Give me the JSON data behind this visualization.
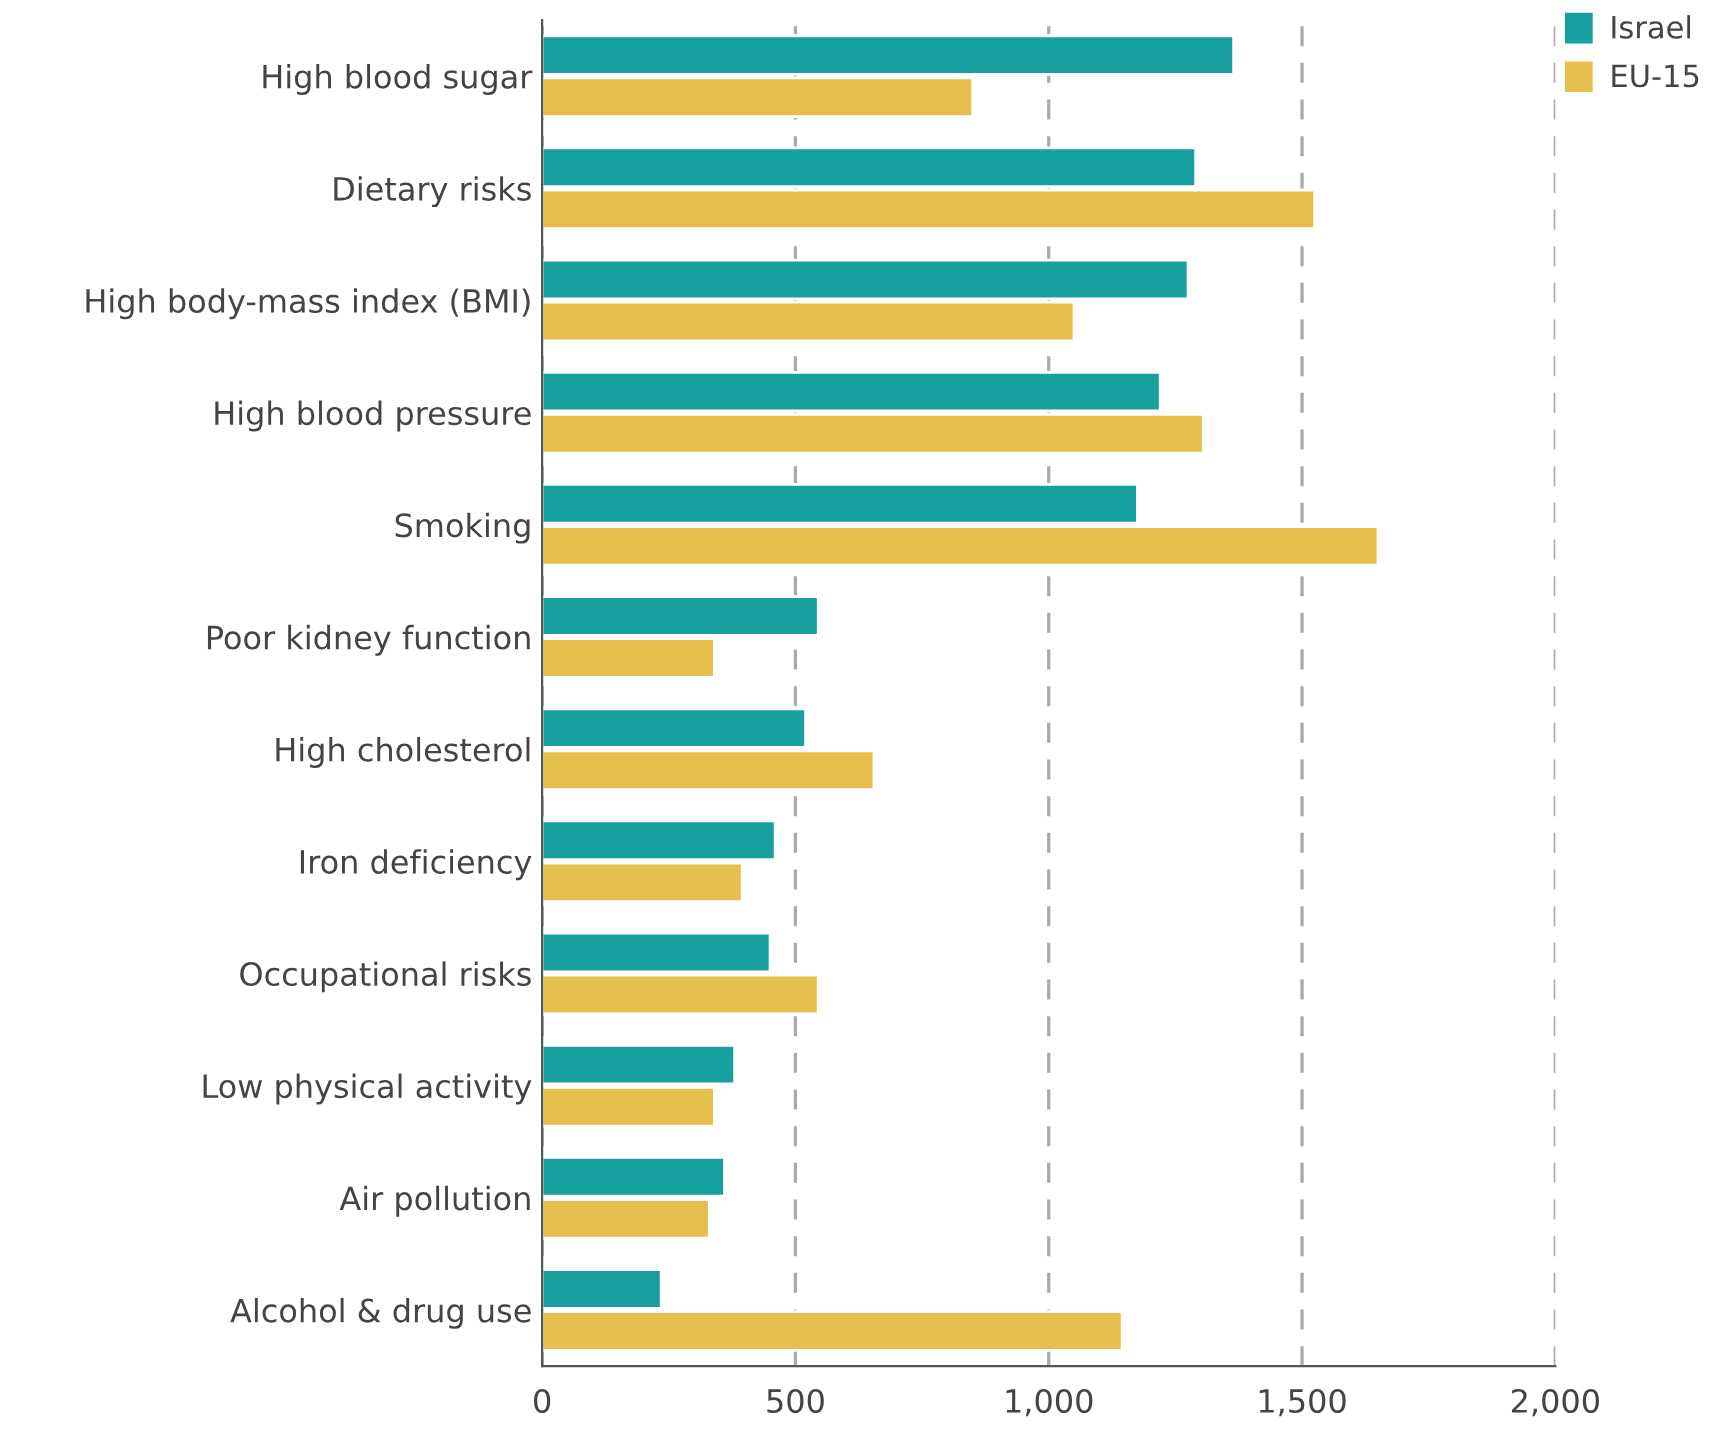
{
  "chart_data": {
    "type": "bar",
    "orientation": "horizontal",
    "categories": [
      "High blood sugar",
      "Dietary risks",
      "High body-mass index (BMI)",
      "High blood pressure",
      "Smoking",
      "Poor kidney function",
      "High cholesterol",
      "Iron deficiency",
      "Occupational risks",
      "Low physical activity",
      "Air pollution",
      "Alcohol & drug use"
    ],
    "series": [
      {
        "name": "Israel",
        "color": "#17a09f",
        "values": [
          1365,
          1290,
          1275,
          1220,
          1175,
          545,
          520,
          460,
          450,
          380,
          360,
          235
        ]
      },
      {
        "name": "EU-15",
        "color": "#e5be4c",
        "values": [
          850,
          1525,
          1050,
          1305,
          1650,
          340,
          655,
          395,
          545,
          340,
          330,
          1145
        ]
      }
    ],
    "xlim": [
      0,
      2000
    ],
    "xticks": [
      0,
      500,
      {
        "value": 1000,
        "label": "1,000"
      },
      {
        "value": 1500,
        "label": "1,500"
      },
      {
        "value": 2000,
        "label": "2,000"
      }
    ],
    "grid": "x",
    "legend": "top right"
  }
}
